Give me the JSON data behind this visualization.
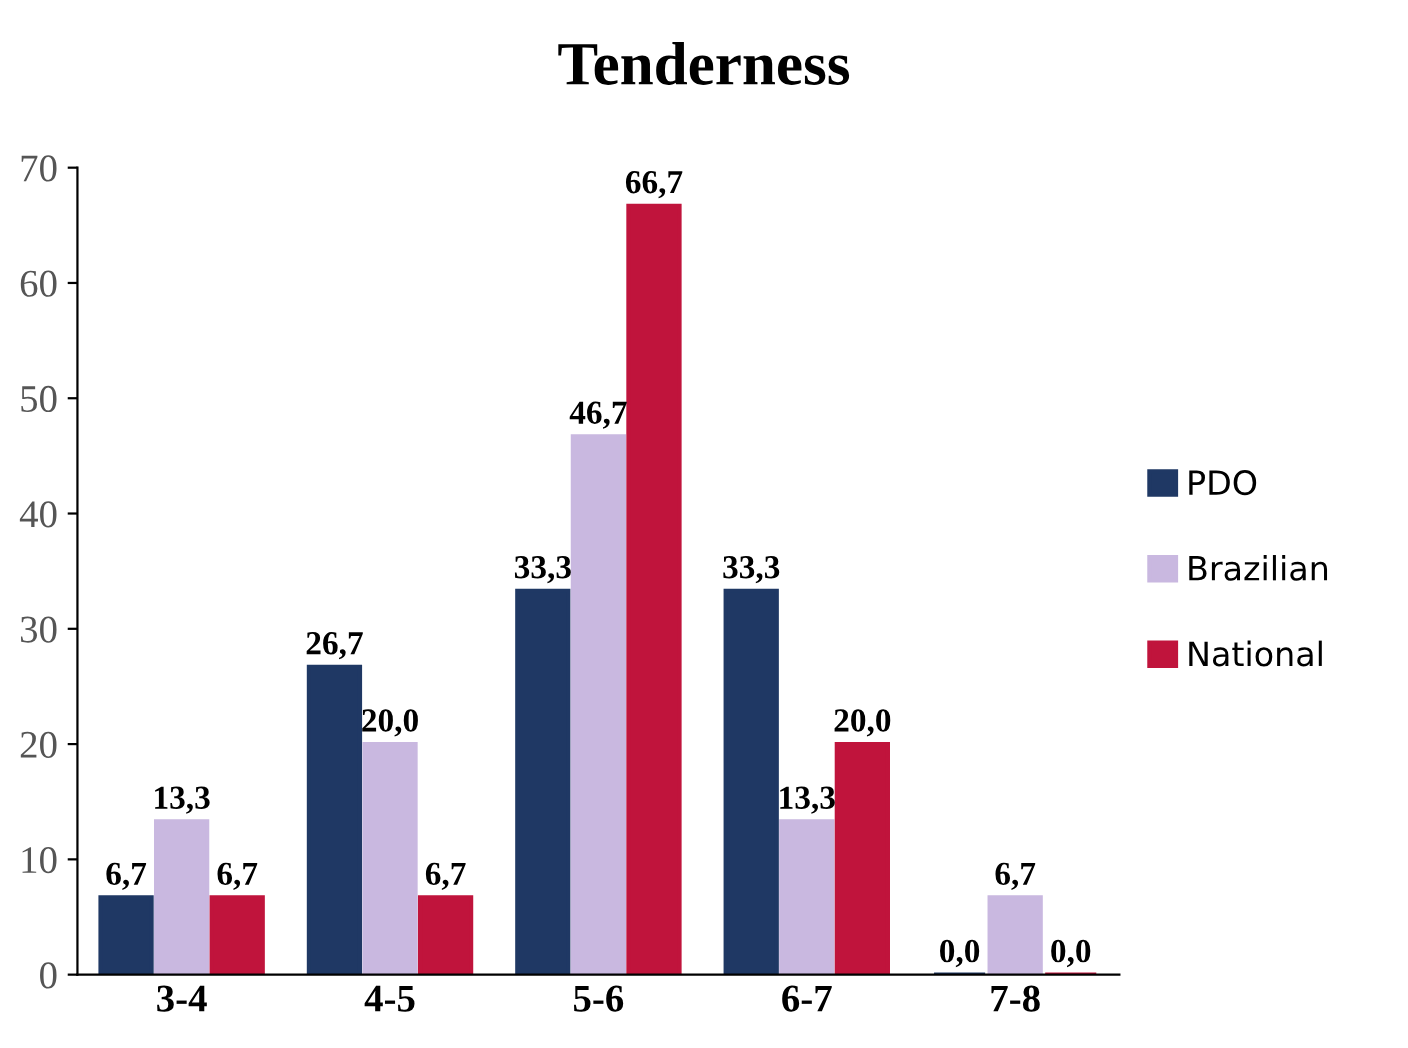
{
  "chart_data": {
    "type": "bar",
    "title": "Tenderness",
    "categories": [
      "3-4",
      "4-5",
      "5-6",
      "6-7",
      "7-8"
    ],
    "series": [
      {
        "name": "PDO",
        "color": "#1f3864",
        "values": [
          6.7,
          26.7,
          33.3,
          33.3,
          0.0
        ],
        "value_labels": [
          "6,7",
          "26,7",
          "33,3",
          "33,3",
          "0,0"
        ]
      },
      {
        "name": "Brazilian",
        "color": "#c9b8e0",
        "values": [
          13.3,
          20.0,
          46.7,
          13.3,
          6.7
        ],
        "value_labels": [
          "13,3",
          "20,0",
          "46,7",
          "13,3",
          "6,7"
        ]
      },
      {
        "name": "National",
        "color": "#c0143c",
        "values": [
          6.7,
          6.7,
          66.7,
          20.0,
          0.0
        ],
        "value_labels": [
          "6,7",
          "6,7",
          "66,7",
          "20,0",
          "0,0"
        ]
      }
    ],
    "ylim": [
      0,
      70
    ],
    "yticks": [
      0,
      10,
      20,
      30,
      40,
      50,
      60,
      70
    ],
    "grid": false,
    "legend": "right"
  }
}
